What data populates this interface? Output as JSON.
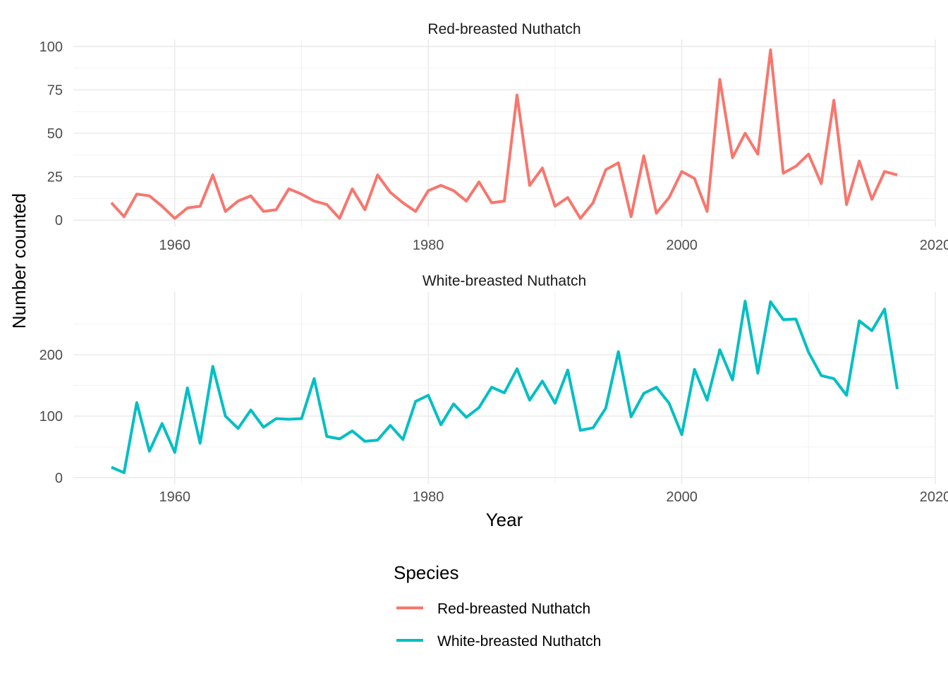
{
  "chart_data": {
    "type": "line",
    "facets": [
      "Red-breasted Nuthatch",
      "White-breasted Nuthatch"
    ],
    "xlabel": "Year",
    "ylabel": "Number counted",
    "xlim": [
      1952,
      2020
    ],
    "x_ticks": [
      1960,
      1980,
      2000,
      2020
    ],
    "legend": {
      "title": "Species",
      "position": "bottom",
      "entries": [
        "Red-breasted Nuthatch",
        "White-breasted Nuthatch"
      ]
    },
    "grid": true,
    "panels": [
      {
        "name": "Red-breasted Nuthatch",
        "color": "#F8766D",
        "ylim": [
          -4,
          104
        ],
        "y_ticks": [
          0,
          25,
          50,
          75,
          100
        ],
        "x": [
          1955,
          1956,
          1957,
          1958,
          1959,
          1960,
          1961,
          1962,
          1963,
          1964,
          1965,
          1966,
          1967,
          1968,
          1969,
          1970,
          1971,
          1972,
          1973,
          1974,
          1975,
          1976,
          1977,
          1978,
          1979,
          1980,
          1981,
          1982,
          1983,
          1984,
          1985,
          1986,
          1987,
          1988,
          1989,
          1990,
          1991,
          1992,
          1993,
          1994,
          1995,
          1996,
          1997,
          1998,
          1999,
          2000,
          2001,
          2002,
          2003,
          2004,
          2005,
          2006,
          2007,
          2008,
          2009,
          2010,
          2011,
          2012,
          2013,
          2014,
          2015,
          2016,
          2017
        ],
        "values": [
          10,
          2,
          15,
          14,
          8,
          1,
          7,
          8,
          26,
          5,
          11,
          14,
          5,
          6,
          18,
          15,
          11,
          9,
          1,
          18,
          6,
          26,
          16,
          10,
          5,
          17,
          20,
          17,
          11,
          22,
          10,
          11,
          72,
          20,
          30,
          8,
          13,
          1,
          10,
          29,
          33,
          2,
          37,
          4,
          13,
          28,
          24,
          5,
          81,
          36,
          50,
          38,
          98,
          27,
          31,
          38,
          21,
          69,
          9,
          34,
          12,
          28,
          26
        ]
      },
      {
        "name": "White-breasted Nuthatch",
        "color": "#00BFC4",
        "ylim": [
          -10,
          302
        ],
        "y_ticks": [
          0,
          100,
          200
        ],
        "x": [
          1955,
          1956,
          1957,
          1958,
          1959,
          1960,
          1961,
          1962,
          1963,
          1964,
          1965,
          1966,
          1967,
          1968,
          1969,
          1970,
          1971,
          1972,
          1973,
          1974,
          1975,
          1976,
          1977,
          1978,
          1979,
          1980,
          1981,
          1982,
          1983,
          1984,
          1985,
          1986,
          1987,
          1988,
          1989,
          1990,
          1991,
          1992,
          1993,
          1994,
          1995,
          1996,
          1997,
          1998,
          1999,
          2000,
          2001,
          2002,
          2003,
          2004,
          2005,
          2006,
          2007,
          2008,
          2009,
          2010,
          2011,
          2012,
          2013,
          2014,
          2015,
          2016,
          2017
        ],
        "values": [
          17,
          8,
          122,
          43,
          88,
          41,
          146,
          56,
          181,
          100,
          80,
          110,
          82,
          96,
          95,
          96,
          161,
          67,
          63,
          76,
          59,
          61,
          85,
          62,
          124,
          134,
          86,
          120,
          98,
          114,
          147,
          138,
          177,
          126,
          157,
          121,
          175,
          77,
          81,
          113,
          205,
          99,
          137,
          147,
          121,
          70,
          176,
          126,
          208,
          159,
          287,
          170,
          286,
          257,
          258,
          204,
          166,
          161,
          134,
          255,
          239,
          274,
          144
        ]
      }
    ]
  }
}
